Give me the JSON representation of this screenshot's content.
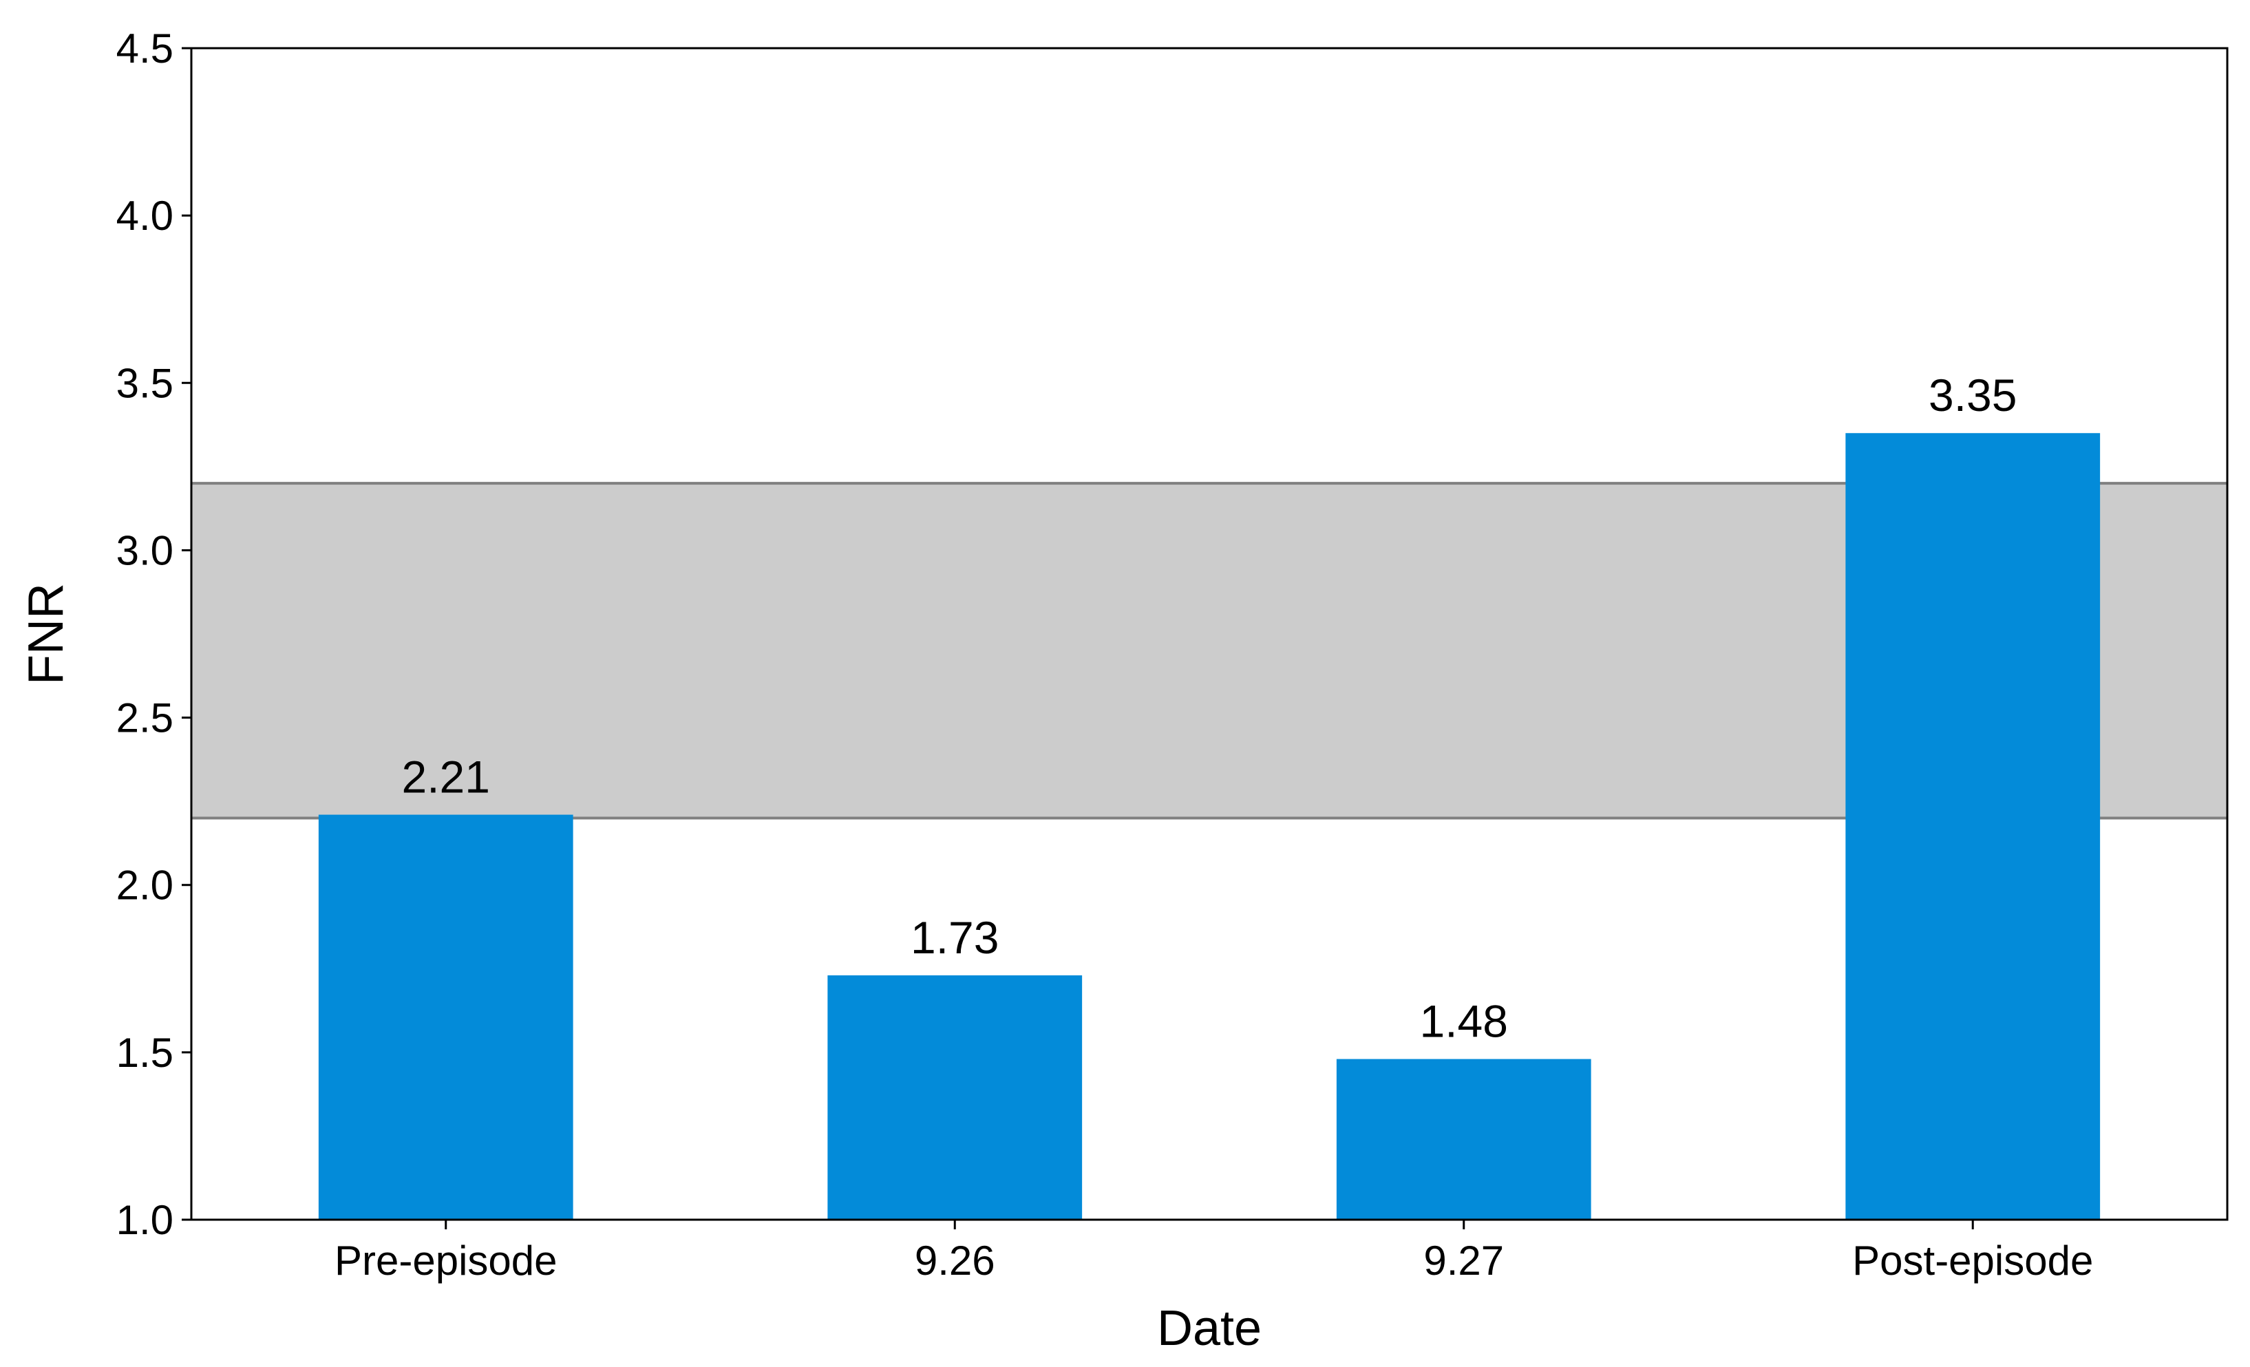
{
  "chart_data": {
    "type": "bar",
    "categories": [
      "Pre-episode",
      "9.26",
      "9.27",
      "Post-episode"
    ],
    "values": [
      2.21,
      1.73,
      1.48,
      3.35
    ],
    "data_labels": [
      "2.21",
      "1.73",
      "1.48",
      "3.35"
    ],
    "xlabel": "Date",
    "ylabel": "FNR",
    "ylim": [
      1.0,
      4.5
    ],
    "yticks": [
      1.0,
      1.5,
      2.0,
      2.5,
      3.0,
      3.5,
      4.0,
      4.5
    ],
    "ytick_labels": [
      "1.0",
      "1.5",
      "2.0",
      "2.5",
      "3.0",
      "3.5",
      "4.0",
      "4.5"
    ],
    "reference_band": {
      "from": 2.2,
      "to": 3.2
    },
    "grid": false,
    "legend": "none",
    "colors": {
      "bar": "#038bd9",
      "band_fill": "#cccccc",
      "band_edge": "#808080",
      "axis": "#000000"
    }
  }
}
